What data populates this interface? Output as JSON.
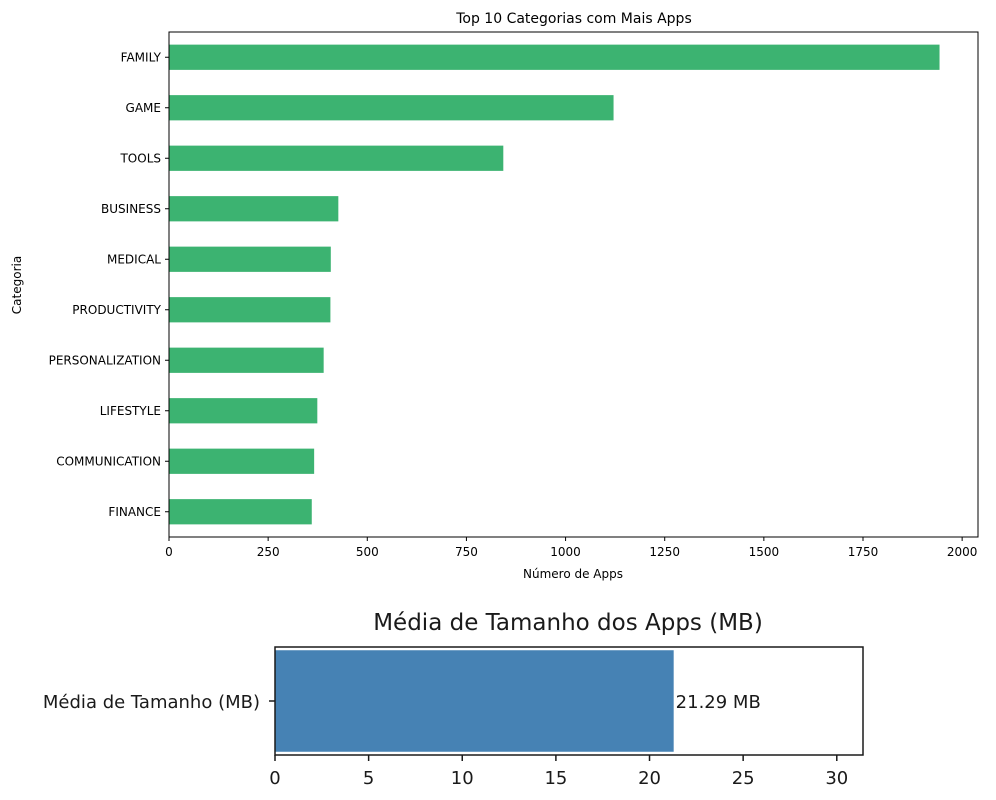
{
  "chart_data": [
    {
      "type": "bar",
      "orientation": "horizontal",
      "title": "Top 10 Categorias com Mais Apps",
      "xlabel": "Número de Apps",
      "ylabel": "Categoria",
      "categories": [
        "FAMILY",
        "GAME",
        "TOOLS",
        "BUSINESS",
        "MEDICAL",
        "PRODUCTIVITY",
        "PERSONALIZATION",
        "LIFESTYLE",
        "COMMUNICATION",
        "FINANCE"
      ],
      "values": [
        1943,
        1121,
        843,
        427,
        408,
        407,
        390,
        374,
        366,
        360
      ],
      "xlim": [
        0,
        2040
      ],
      "xticks": [
        "0",
        "250",
        "500",
        "750",
        "1000",
        "1250",
        "1500",
        "1750",
        "2000"
      ],
      "xtick_values": [
        0,
        250,
        500,
        750,
        1000,
        1250,
        1500,
        1750,
        2000
      ],
      "grid": false,
      "color": "#3cb371"
    },
    {
      "type": "bar",
      "orientation": "horizontal",
      "title": "Média de Tamanho dos Apps (MB)",
      "categories": [
        "Média de Tamanho (MB)"
      ],
      "values": [
        21.29
      ],
      "data_labels": [
        "21.29 MB"
      ],
      "xlim": [
        0,
        31.4
      ],
      "xticks": [
        "0",
        "5",
        "10",
        "15",
        "20",
        "25",
        "30"
      ],
      "xtick_values": [
        0,
        5,
        10,
        15,
        20,
        25,
        30
      ],
      "grid": false,
      "color": "#4682b4"
    }
  ]
}
